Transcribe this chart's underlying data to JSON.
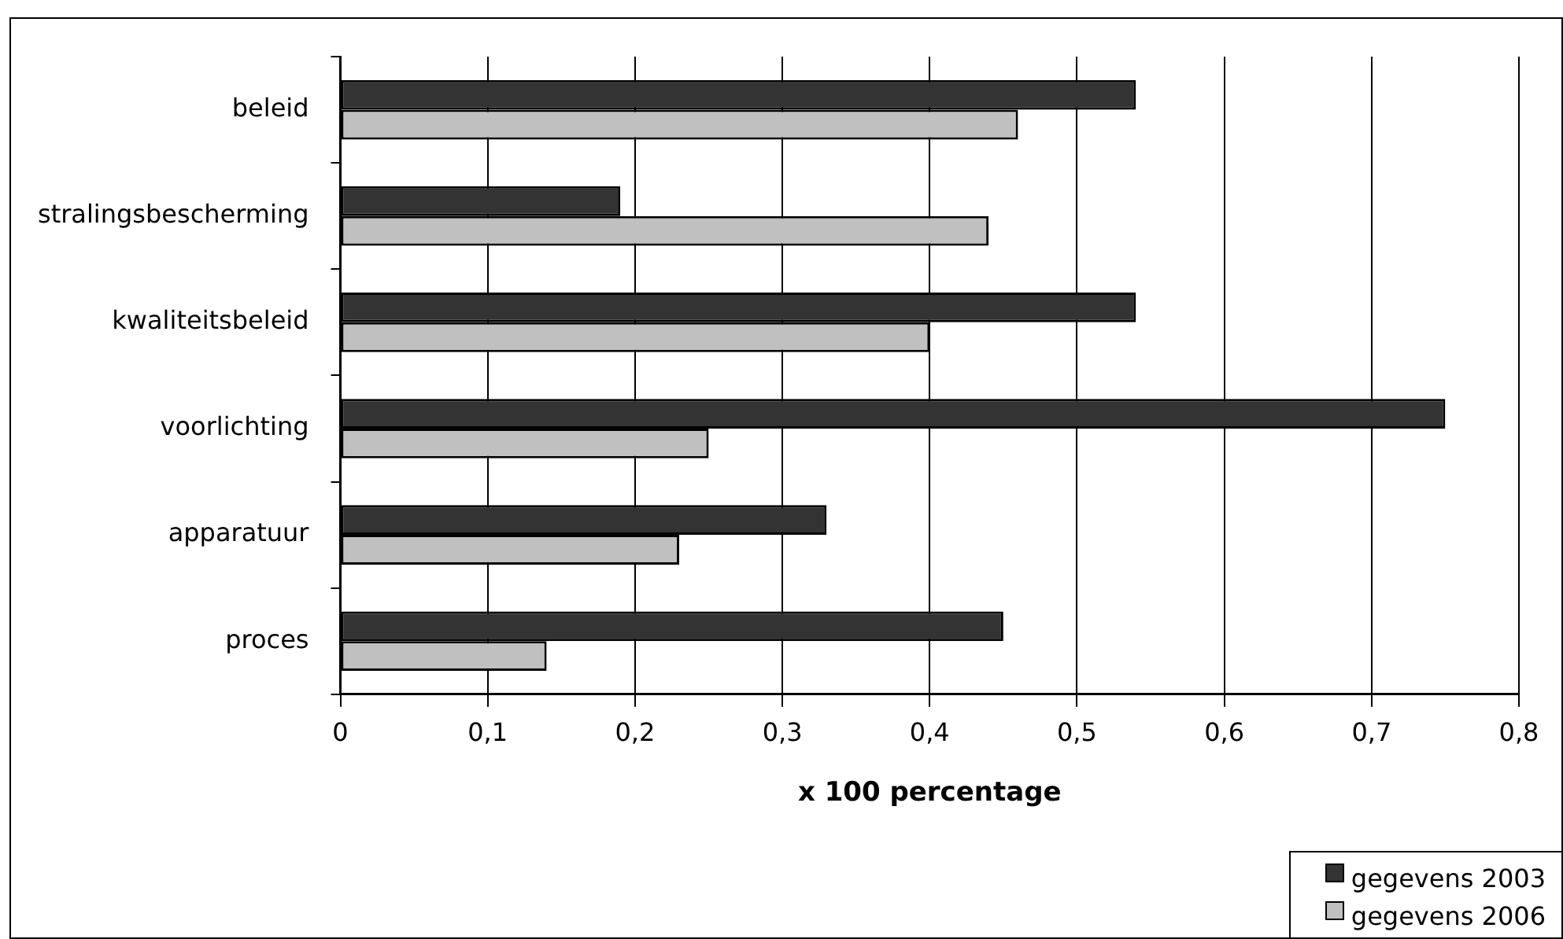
{
  "chart_data": {
    "type": "bar",
    "orientation": "horizontal",
    "xlabel": "x 100 percentage",
    "categories": [
      "beleid",
      "stralingsbescherming",
      "kwaliteitsbeleid",
      "voorlichting",
      "apparatuur",
      "proces"
    ],
    "series": [
      {
        "name": "gegevens 2003",
        "color": "#333333",
        "values": [
          0.54,
          0.19,
          0.54,
          0.75,
          0.33,
          0.45
        ]
      },
      {
        "name": "gegevens 2006",
        "color": "#c0c0c0",
        "values": [
          0.46,
          0.44,
          0.4,
          0.25,
          0.23,
          0.14
        ]
      }
    ],
    "xlim": [
      0,
      0.8
    ],
    "xticks": [
      {
        "value": 0,
        "label": "0"
      },
      {
        "value": 0.1,
        "label": "0,1"
      },
      {
        "value": 0.2,
        "label": "0,2"
      },
      {
        "value": 0.3,
        "label": "0,3"
      },
      {
        "value": 0.4,
        "label": "0,4"
      },
      {
        "value": 0.5,
        "label": "0,5"
      },
      {
        "value": 0.6,
        "label": "0,6"
      },
      {
        "value": 0.7,
        "label": "0,7"
      },
      {
        "value": 0.8,
        "label": "0,8"
      }
    ],
    "grid": "x",
    "legend": "bottom right"
  }
}
